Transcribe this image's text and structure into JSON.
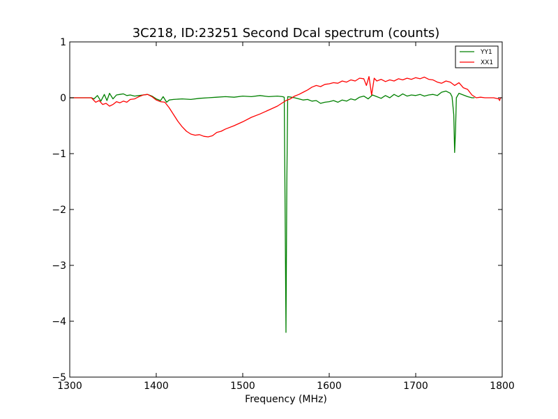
{
  "chart_data": {
    "type": "line",
    "title": "3C218, ID:23251 Second Dcal spectrum (counts)",
    "xlabel": "Frequency (MHz)",
    "ylabel": "",
    "xlim": [
      1300,
      1800
    ],
    "ylim": [
      -5,
      1
    ],
    "x_ticks": [
      1300,
      1400,
      1500,
      1600,
      1700,
      1800
    ],
    "x_tick_labels": [
      "1300",
      "1400",
      "1500",
      "1600",
      "1700",
      "1800"
    ],
    "y_ticks": [
      -5,
      -4,
      -3,
      -2,
      -1,
      0,
      1
    ],
    "y_tick_labels": [
      "−5",
      "−4",
      "−3",
      "−2",
      "−1",
      "0",
      "1"
    ],
    "grid": false,
    "legend_position": "top-right",
    "series": [
      {
        "name": "YY1",
        "color": "#008000",
        "points": [
          [
            1300,
            0
          ],
          [
            1325,
            0
          ],
          [
            1328,
            -0.02
          ],
          [
            1332,
            0.04
          ],
          [
            1336,
            -0.06
          ],
          [
            1340,
            0.06
          ],
          [
            1343,
            -0.05
          ],
          [
            1346,
            0.08
          ],
          [
            1350,
            -0.02
          ],
          [
            1354,
            0.05
          ],
          [
            1358,
            0.06
          ],
          [
            1362,
            0.07
          ],
          [
            1366,
            0.04
          ],
          [
            1370,
            0.05
          ],
          [
            1375,
            0.03
          ],
          [
            1380,
            0.04
          ],
          [
            1385,
            0.05
          ],
          [
            1390,
            0.06
          ],
          [
            1395,
            0.03
          ],
          [
            1400,
            -0.02
          ],
          [
            1405,
            -0.05
          ],
          [
            1408,
            0.02
          ],
          [
            1412,
            -0.08
          ],
          [
            1415,
            -0.04
          ],
          [
            1420,
            -0.03
          ],
          [
            1430,
            -0.02
          ],
          [
            1440,
            -0.03
          ],
          [
            1450,
            -0.01
          ],
          [
            1460,
            0.0
          ],
          [
            1470,
            0.01
          ],
          [
            1480,
            0.02
          ],
          [
            1490,
            0.01
          ],
          [
            1500,
            0.03
          ],
          [
            1510,
            0.02
          ],
          [
            1520,
            0.04
          ],
          [
            1530,
            0.02
          ],
          [
            1540,
            0.03
          ],
          [
            1546,
            0.02
          ],
          [
            1548,
            0.01
          ],
          [
            1549,
            -2.0
          ],
          [
            1550,
            -4.2
          ],
          [
            1551,
            -1.5
          ],
          [
            1552,
            0.02
          ],
          [
            1556,
            0.01
          ],
          [
            1560,
            0.0
          ],
          [
            1565,
            -0.02
          ],
          [
            1570,
            -0.04
          ],
          [
            1575,
            -0.03
          ],
          [
            1580,
            -0.06
          ],
          [
            1585,
            -0.05
          ],
          [
            1590,
            -0.1
          ],
          [
            1595,
            -0.08
          ],
          [
            1600,
            -0.07
          ],
          [
            1605,
            -0.05
          ],
          [
            1610,
            -0.08
          ],
          [
            1615,
            -0.04
          ],
          [
            1620,
            -0.06
          ],
          [
            1625,
            -0.02
          ],
          [
            1630,
            -0.04
          ],
          [
            1635,
            0.01
          ],
          [
            1640,
            0.03
          ],
          [
            1645,
            -0.02
          ],
          [
            1650,
            0.05
          ],
          [
            1655,
            0.02
          ],
          [
            1660,
            -0.01
          ],
          [
            1665,
            0.04
          ],
          [
            1670,
            0.0
          ],
          [
            1675,
            0.06
          ],
          [
            1680,
            0.02
          ],
          [
            1685,
            0.07
          ],
          [
            1690,
            0.03
          ],
          [
            1695,
            0.05
          ],
          [
            1700,
            0.04
          ],
          [
            1705,
            0.06
          ],
          [
            1710,
            0.03
          ],
          [
            1715,
            0.05
          ],
          [
            1720,
            0.06
          ],
          [
            1725,
            0.04
          ],
          [
            1730,
            0.1
          ],
          [
            1735,
            0.12
          ],
          [
            1740,
            0.08
          ],
          [
            1742,
            0.02
          ],
          [
            1744,
            -0.3
          ],
          [
            1745,
            -0.98
          ],
          [
            1746,
            -0.6
          ],
          [
            1747,
            0.0
          ],
          [
            1750,
            0.08
          ],
          [
            1755,
            0.05
          ],
          [
            1760,
            0.02
          ],
          [
            1765,
            0.0
          ],
          [
            1768,
            0.0
          ]
        ]
      },
      {
        "name": "XX1",
        "color": "#ff0000",
        "points": [
          [
            1300,
            0
          ],
          [
            1325,
            0
          ],
          [
            1330,
            -0.08
          ],
          [
            1334,
            -0.05
          ],
          [
            1338,
            -0.12
          ],
          [
            1342,
            -0.1
          ],
          [
            1346,
            -0.15
          ],
          [
            1350,
            -0.12
          ],
          [
            1354,
            -0.07
          ],
          [
            1358,
            -0.09
          ],
          [
            1362,
            -0.06
          ],
          [
            1366,
            -0.08
          ],
          [
            1370,
            -0.03
          ],
          [
            1375,
            -0.02
          ],
          [
            1380,
            0.02
          ],
          [
            1385,
            0.05
          ],
          [
            1390,
            0.06
          ],
          [
            1395,
            0.02
          ],
          [
            1400,
            -0.04
          ],
          [
            1405,
            -0.07
          ],
          [
            1410,
            -0.08
          ],
          [
            1415,
            -0.18
          ],
          [
            1420,
            -0.3
          ],
          [
            1425,
            -0.42
          ],
          [
            1430,
            -0.52
          ],
          [
            1435,
            -0.6
          ],
          [
            1440,
            -0.65
          ],
          [
            1445,
            -0.67
          ],
          [
            1450,
            -0.66
          ],
          [
            1455,
            -0.69
          ],
          [
            1460,
            -0.7
          ],
          [
            1465,
            -0.68
          ],
          [
            1470,
            -0.62
          ],
          [
            1475,
            -0.6
          ],
          [
            1480,
            -0.56
          ],
          [
            1490,
            -0.5
          ],
          [
            1500,
            -0.43
          ],
          [
            1510,
            -0.35
          ],
          [
            1520,
            -0.29
          ],
          [
            1530,
            -0.22
          ],
          [
            1540,
            -0.15
          ],
          [
            1545,
            -0.1
          ],
          [
            1550,
            -0.05
          ],
          [
            1555,
            -0.02
          ],
          [
            1560,
            0.03
          ],
          [
            1565,
            0.06
          ],
          [
            1570,
            0.1
          ],
          [
            1575,
            0.14
          ],
          [
            1580,
            0.19
          ],
          [
            1585,
            0.22
          ],
          [
            1590,
            0.2
          ],
          [
            1595,
            0.24
          ],
          [
            1600,
            0.25
          ],
          [
            1605,
            0.27
          ],
          [
            1610,
            0.26
          ],
          [
            1615,
            0.3
          ],
          [
            1620,
            0.28
          ],
          [
            1625,
            0.32
          ],
          [
            1630,
            0.3
          ],
          [
            1635,
            0.35
          ],
          [
            1640,
            0.34
          ],
          [
            1643,
            0.22
          ],
          [
            1646,
            0.38
          ],
          [
            1649,
            0.05
          ],
          [
            1652,
            0.35
          ],
          [
            1655,
            0.3
          ],
          [
            1660,
            0.33
          ],
          [
            1665,
            0.29
          ],
          [
            1670,
            0.32
          ],
          [
            1675,
            0.3
          ],
          [
            1680,
            0.34
          ],
          [
            1685,
            0.32
          ],
          [
            1690,
            0.35
          ],
          [
            1695,
            0.33
          ],
          [
            1700,
            0.36
          ],
          [
            1705,
            0.34
          ],
          [
            1710,
            0.37
          ],
          [
            1715,
            0.33
          ],
          [
            1720,
            0.32
          ],
          [
            1725,
            0.28
          ],
          [
            1730,
            0.26
          ],
          [
            1735,
            0.3
          ],
          [
            1740,
            0.28
          ],
          [
            1745,
            0.22
          ],
          [
            1750,
            0.27
          ],
          [
            1755,
            0.18
          ],
          [
            1760,
            0.15
          ],
          [
            1765,
            0.05
          ],
          [
            1770,
            0.0
          ],
          [
            1775,
            0.01
          ],
          [
            1780,
            0.0
          ],
          [
            1790,
            0.0
          ],
          [
            1796,
            -0.02
          ],
          [
            1797,
            -0.05
          ],
          [
            1798,
            0.0
          ],
          [
            1800,
            0.0
          ]
        ]
      }
    ]
  }
}
